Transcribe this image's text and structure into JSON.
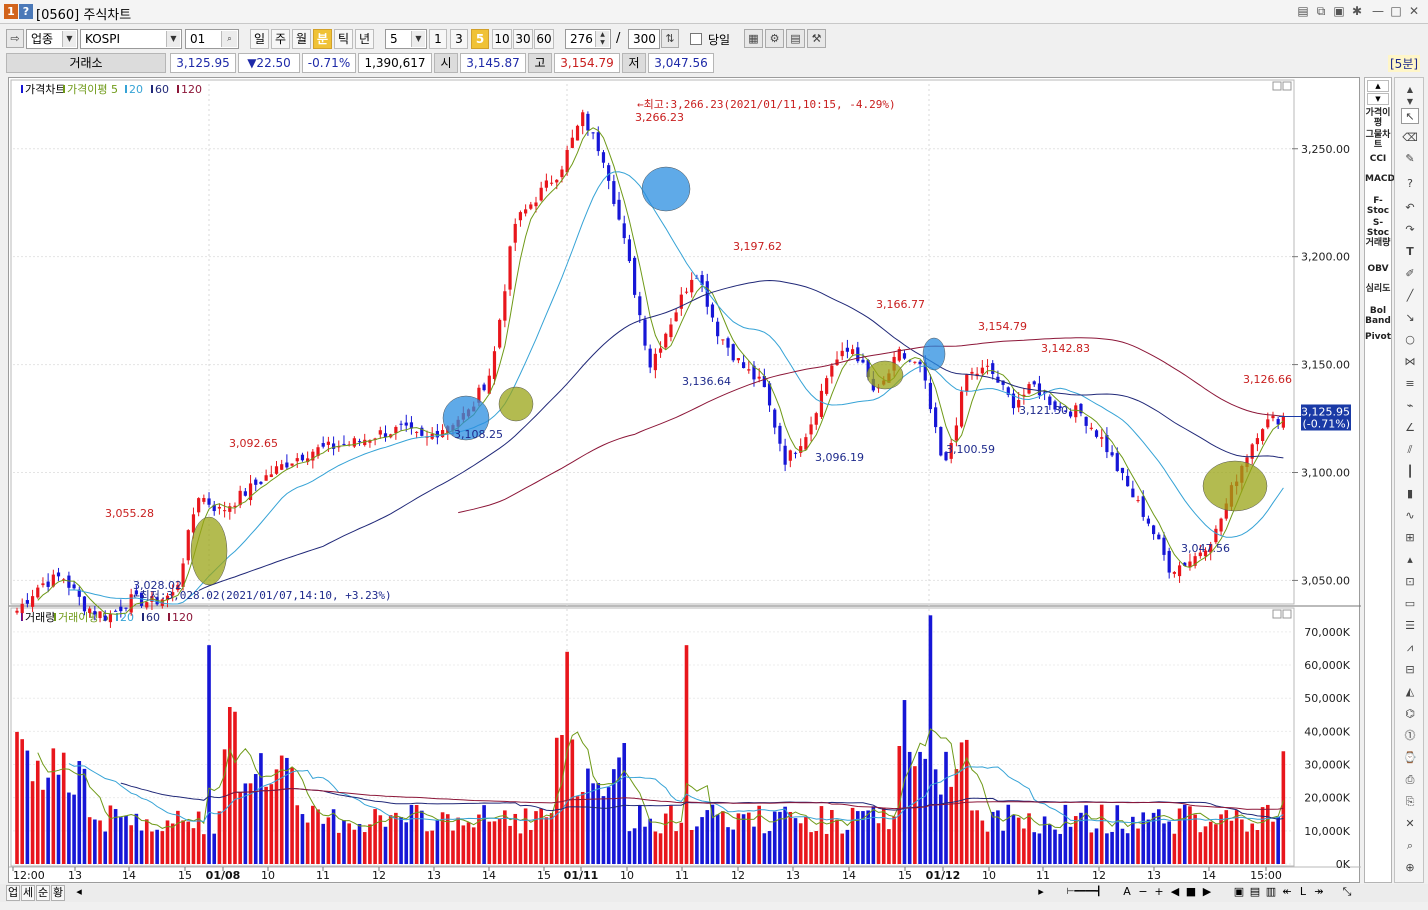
{
  "window": {
    "code": "[0560]",
    "title": "주식차트"
  },
  "toolbar": {
    "market": "업종",
    "index_name": "KOSPI",
    "index_code": "01",
    "periods": [
      "일",
      "주",
      "월",
      "분",
      "틱",
      "년"
    ],
    "selected_period": "분",
    "interval_value": "5",
    "intervals": [
      "1",
      "3",
      "5",
      "10",
      "30",
      "60"
    ],
    "selected_interval": "5",
    "count": "276",
    "separator": "/",
    "total": "300",
    "same_day_label": "당일"
  },
  "quote": {
    "exchange": "거래소",
    "price": "3,125.95",
    "change": "▼22.50",
    "change_pct": "-0.71%",
    "volume": "1,390,617",
    "open_label": "시",
    "open": "3,145.87",
    "high_label": "고",
    "high": "3,154.79",
    "low_label": "저",
    "low": "3,047.56",
    "timeframe": "[5분]"
  },
  "price_legend": {
    "name": "가격차트",
    "ma_name": "가격이평",
    "ma_periods": [
      "5",
      "20",
      "60",
      "120"
    ]
  },
  "volume_legend": {
    "name": "거래량",
    "ma_name": "거래이평",
    "ma_periods": [
      "5",
      "20",
      "60",
      "120"
    ]
  },
  "annotations": {
    "max_label": "←최고:3,266.23(2021/01/11,10:15, -4.29%)",
    "min_label": "←최저:3,028.02(2021/01/07,14:10, +3.23%)",
    "points": [
      "3,266.23",
      "3,197.62",
      "3,166.77",
      "3,154.79",
      "3,142.83",
      "3,126.66",
      "3,092.65",
      "3,055.28",
      "3,028.02",
      "3,108.25",
      "3,136.64",
      "3,096.19",
      "3,100.59",
      "3,121.30",
      "3,047.56"
    ]
  },
  "current_price_tag": {
    "price": "3,125.95",
    "pct": "(-0.71%)"
  },
  "price_axis": [
    "3,250.00",
    "3,200.00",
    "3,150.00",
    "3,100.00",
    "3,050.00"
  ],
  "volume_axis": [
    "70,000K",
    "60,000K",
    "50,000K",
    "40,000K",
    "30,000K",
    "20,000K",
    "10,000K",
    "0K"
  ],
  "time_axis": [
    {
      "label": "12:00",
      "bold": false
    },
    {
      "label": "13",
      "bold": false
    },
    {
      "label": "14",
      "bold": false
    },
    {
      "label": "15",
      "bold": false
    },
    {
      "label": "01/08",
      "bold": true
    },
    {
      "label": "10",
      "bold": false
    },
    {
      "label": "11",
      "bold": false
    },
    {
      "label": "12",
      "bold": false
    },
    {
      "label": "13",
      "bold": false
    },
    {
      "label": "14",
      "bold": false
    },
    {
      "label": "15",
      "bold": false
    },
    {
      "label": "01/11",
      "bold": true
    },
    {
      "label": "10",
      "bold": false
    },
    {
      "label": "11",
      "bold": false
    },
    {
      "label": "12",
      "bold": false
    },
    {
      "label": "13",
      "bold": false
    },
    {
      "label": "14",
      "bold": false
    },
    {
      "label": "15",
      "bold": false
    },
    {
      "label": "01/12",
      "bold": true
    },
    {
      "label": "10",
      "bold": false
    },
    {
      "label": "11",
      "bold": false
    },
    {
      "label": "12",
      "bold": false
    },
    {
      "label": "13",
      "bold": false
    },
    {
      "label": "14",
      "bold": false
    },
    {
      "label": "15:00",
      "bold": false
    }
  ],
  "bottom_tabs": [
    "업",
    "세",
    "순",
    "황"
  ],
  "indicator_panel": [
    "가격이평",
    "그물차트",
    "CCI",
    "MACD",
    "F-Stoc",
    "S-Stoc",
    "거래량",
    "OBV",
    "심리도",
    "Bol Band",
    "Pivot"
  ],
  "colors": {
    "up": "#e8161c",
    "down": "#1616d6",
    "ma5": "#6f9a18",
    "ma20": "#36a3d6",
    "ma60": "#202878",
    "ma120": "#8c1638",
    "annot_red": "#c81e1e",
    "annot_blue": "#1e2a8c"
  },
  "chart_data": {
    "type": "candlestick",
    "title": "가격차트",
    "x": [
      "12:00",
      "13",
      "14",
      "15",
      "01/08",
      "10",
      "11",
      "12",
      "13",
      "14",
      "15",
      "01/11",
      "10",
      "11",
      "12",
      "13",
      "14",
      "15",
      "01/12",
      "10",
      "11",
      "12",
      "13",
      "14",
      "15:00"
    ],
    "close_path": [
      3036,
      3048,
      3052,
      3038,
      3033,
      3041,
      3040,
      3044,
      3090,
      3082,
      3090,
      3098,
      3105,
      3110,
      3112,
      3114,
      3118,
      3120,
      3115,
      3122,
      3128,
      3148,
      3215,
      3228,
      3240,
      3265,
      3245,
      3200,
      3150,
      3172,
      3195,
      3165,
      3150,
      3140,
      3105,
      3120,
      3150,
      3158,
      3135,
      3155,
      3148,
      3100,
      3145,
      3148,
      3132,
      3140,
      3130,
      3128,
      3115,
      3095,
      3078,
      3055,
      3060,
      3072,
      3100,
      3122,
      3126
    ],
    "max": {
      "value": 3266.23,
      "time": "2021/01/11 10:15",
      "pct": -4.29
    },
    "min": {
      "value": 3028.02,
      "time": "2021/01/07 14:10",
      "pct": 3.23
    },
    "current": 3125.95,
    "ylim": [
      3040,
      3280
    ],
    "volume_unit": "K",
    "volume_ylim": [
      0,
      76000
    ],
    "volume_spikes_k": [
      66000,
      64000,
      66000,
      75000,
      34000
    ]
  }
}
